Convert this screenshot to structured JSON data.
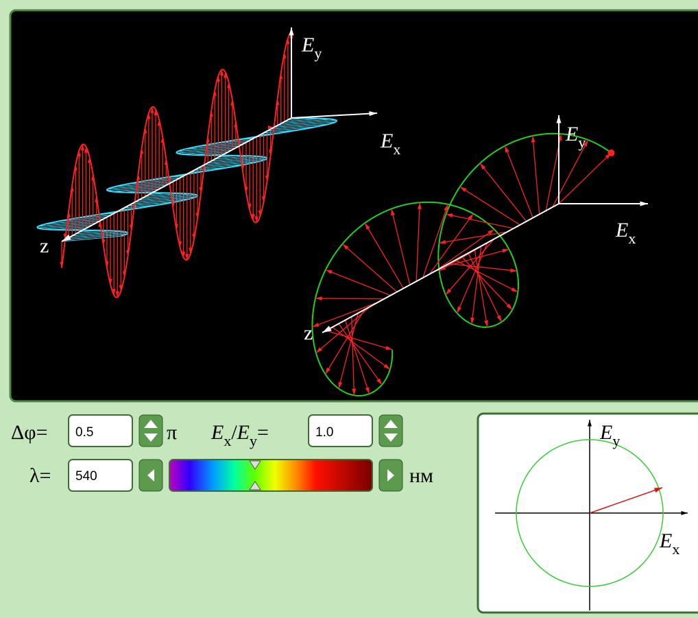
{
  "scene": {
    "wave_axes": {
      "ey": "E",
      "ey_sub": "y",
      "ex": "E",
      "ex_sub": "x",
      "z": "z"
    },
    "helix_axes": {
      "ey": "E",
      "ey_sub": "y",
      "ex": "E",
      "ex_sub": "x",
      "z": "z"
    }
  },
  "controls": {
    "phase_label": "Δφ=",
    "phase_value": "0.5",
    "phase_unit": "π",
    "ratio_num": "E",
    "ratio_num_sub": "x",
    "ratio_slash": "/",
    "ratio_den": "E",
    "ratio_den_sub": "y",
    "ratio_eq": "=",
    "ratio_value": "1.0",
    "lambda_label": "λ=",
    "lambda_value": "540",
    "lambda_unit": "нм"
  },
  "polarization_plot": {
    "ey": "E",
    "ey_sub": "y",
    "ex": "E",
    "ex_sub": "x"
  }
}
